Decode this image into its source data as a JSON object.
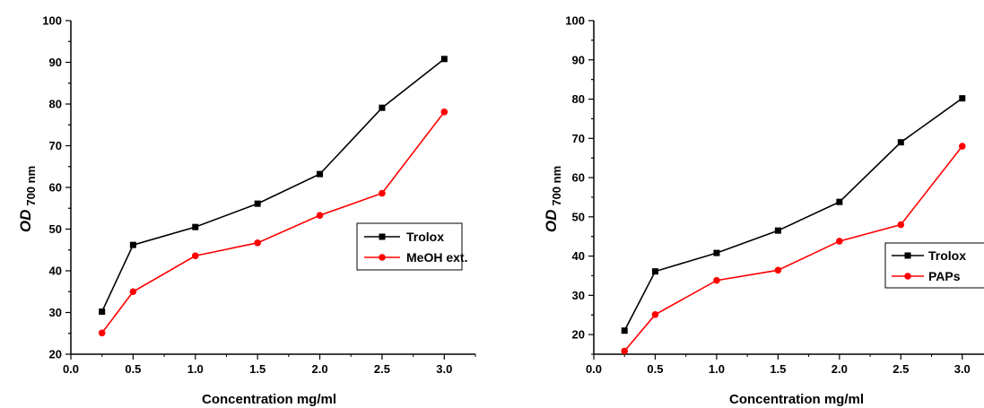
{
  "chart_data": [
    {
      "type": "line",
      "title": "",
      "xlabel": "Concentration  mg/ml",
      "ylabel": {
        "main": "OD",
        "sub": "700 nm"
      },
      "xlim": [
        0.0,
        3.25
      ],
      "ylim": [
        20,
        100
      ],
      "xticks": [
        "0.0",
        "0.5",
        "1.0",
        "1.5",
        "2.0",
        "2.5",
        "3.0"
      ],
      "yticks": [
        "20",
        "30",
        "40",
        "50",
        "60",
        "70",
        "80",
        "90",
        "100"
      ],
      "x": [
        0.25,
        0.5,
        1.0,
        1.5,
        2.0,
        2.5,
        3.0
      ],
      "legend_position": "center-right",
      "series": [
        {
          "name": "Trolox",
          "color": "#000000",
          "marker": "square",
          "values": [
            30.2,
            46.2,
            50.5,
            56.1,
            63.2,
            79.1,
            90.8
          ]
        },
        {
          "name": "MeOH ext.",
          "color": "#ff0000",
          "marker": "circle",
          "values": [
            25.1,
            35.0,
            43.6,
            46.7,
            53.3,
            58.6,
            78.1
          ]
        }
      ],
      "grid": false
    },
    {
      "type": "line",
      "title": "",
      "xlabel": "Concentration  mg/ml",
      "ylabel": {
        "main": "OD",
        "sub": "700 nm"
      },
      "xlim": [
        0.0,
        3.25
      ],
      "ylim": [
        15,
        100
      ],
      "xticks": [
        "0.0",
        "0.5",
        "1.0",
        "1.5",
        "2.0",
        "2.5",
        "3.0"
      ],
      "yticks": [
        "20",
        "30",
        "40",
        "50",
        "60",
        "70",
        "80",
        "90",
        "100"
      ],
      "x": [
        0.25,
        0.5,
        1.0,
        1.5,
        2.0,
        2.5,
        3.0
      ],
      "legend_position": "lower-right",
      "series": [
        {
          "name": "Trolox",
          "color": "#000000",
          "marker": "square",
          "values": [
            21.0,
            36.1,
            40.8,
            46.5,
            53.8,
            69.0,
            80.2
          ]
        },
        {
          "name": "PAPs",
          "color": "#ff0000",
          "marker": "circle",
          "values": [
            15.8,
            25.1,
            33.8,
            36.4,
            43.8,
            48.0,
            68.0
          ]
        }
      ],
      "grid": false
    }
  ]
}
